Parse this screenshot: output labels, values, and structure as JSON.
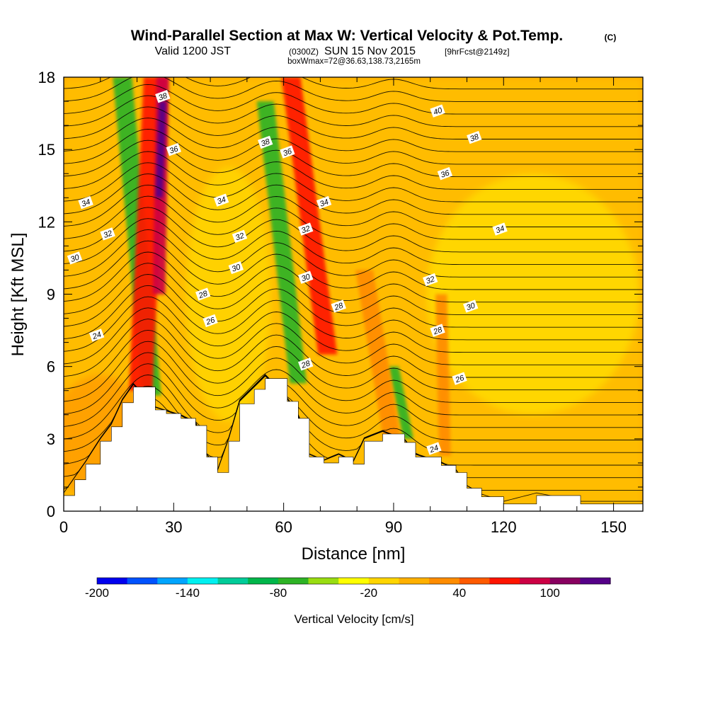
{
  "title_main": "Wind-Parallel Section at Max W: Vertical Velocity & Pot.Temp.",
  "title_mark": "(C)",
  "subtitle_prefix": "Valid 1200 JST",
  "subtitle_utc": "(0300Z)",
  "subtitle_date": "SUN 15 Nov 2015",
  "subtitle_fcst": "[9hrFcst@2149z]",
  "subtitle2": "boxWmax=72@36.63,138.73,2165m",
  "colors": {
    "background": "#ffa500",
    "terrain": "#ffffff",
    "contour": "#000000",
    "colorbar": [
      "#0000ee",
      "#0052ff",
      "#00a5ff",
      "#00f0f0",
      "#00cc99",
      "#00b64a",
      "#2db325",
      "#99dd11",
      "#ffff00",
      "#ffd500",
      "#ffb000",
      "#ff8c00",
      "#ff5a00",
      "#ff1400",
      "#cc0044",
      "#880060",
      "#550088"
    ]
  },
  "chart_data": {
    "type": "heatmap",
    "xlabel": "Distance [nm]",
    "ylabel": "Height [Kft MSL]",
    "xlim": [
      0,
      158
    ],
    "ylim": [
      0,
      18
    ],
    "x_ticks": [
      0,
      30,
      60,
      90,
      120,
      150
    ],
    "y_ticks": [
      0,
      3,
      6,
      9,
      12,
      15,
      18
    ],
    "colorbar": {
      "label": "Vertical Velocity [cm/s]",
      "ticks": [
        "-200",
        "-140",
        "-80",
        "-20",
        "40",
        "100"
      ],
      "bins": 17
    },
    "terrain_profile": [
      {
        "x": 0,
        "h": 0.65
      },
      {
        "x": 3,
        "h": 1.3
      },
      {
        "x": 6,
        "h": 1.95
      },
      {
        "x": 10,
        "h": 2.9
      },
      {
        "x": 13,
        "h": 3.5
      },
      {
        "x": 16,
        "h": 4.5
      },
      {
        "x": 19,
        "h": 5.15
      },
      {
        "x": 25,
        "h": 4.2
      },
      {
        "x": 28,
        "h": 4.05
      },
      {
        "x": 32,
        "h": 3.85
      },
      {
        "x": 36,
        "h": 3.55
      },
      {
        "x": 39,
        "h": 2.25
      },
      {
        "x": 42,
        "h": 1.6
      },
      {
        "x": 45,
        "h": 2.9
      },
      {
        "x": 48,
        "h": 4.45
      },
      {
        "x": 52,
        "h": 5.05
      },
      {
        "x": 55,
        "h": 5.5
      },
      {
        "x": 61,
        "h": 4.55
      },
      {
        "x": 64,
        "h": 3.85
      },
      {
        "x": 67,
        "h": 2.25
      },
      {
        "x": 71,
        "h": 2.0
      },
      {
        "x": 75,
        "h": 2.25
      },
      {
        "x": 79,
        "h": 1.95
      },
      {
        "x": 82,
        "h": 2.9
      },
      {
        "x": 87,
        "h": 3.2
      },
      {
        "x": 93,
        "h": 2.85
      },
      {
        "x": 96,
        "h": 2.25
      },
      {
        "x": 103,
        "h": 1.9
      },
      {
        "x": 107,
        "h": 1.6
      },
      {
        "x": 110,
        "h": 0.95
      },
      {
        "x": 114,
        "h": 0.6
      },
      {
        "x": 120,
        "h": 0.3
      },
      {
        "x": 129,
        "h": 0.65
      },
      {
        "x": 141,
        "h": 0.3
      },
      {
        "x": 158,
        "h": 0.3
      }
    ],
    "updraft_bands": [
      {
        "color": "#ff1400",
        "top_x": 25,
        "top_y": 18,
        "base_x": 21,
        "base_y": 5.0,
        "half_width_nm": 3.2
      },
      {
        "color": "#cc0044",
        "top_x": 27,
        "top_y": 18,
        "base_x": 26,
        "base_y": 9.0,
        "half_width_nm": 1.7
      },
      {
        "color": "#550088",
        "top_x": 27,
        "top_y": 17,
        "base_x": 26,
        "base_y": 13.0,
        "half_width_nm": 1.0
      },
      {
        "color": "#ff1400",
        "top_x": 62,
        "top_y": 18,
        "base_x": 72,
        "base_y": 6.5,
        "half_width_nm": 2.6
      },
      {
        "color": "#ff8c00",
        "top_x": 82,
        "top_y": 10,
        "base_x": 90,
        "base_y": 2.6,
        "half_width_nm": 2.4
      },
      {
        "color": "#ff8c00",
        "top_x": 103,
        "top_y": 9,
        "base_x": 104,
        "base_y": 2.3,
        "half_width_nm": 1.6
      }
    ],
    "downdraft_bands": [
      {
        "color": "#2db325",
        "top_x": 16,
        "top_y": 18,
        "base_x": 24,
        "base_y": 4.8,
        "half_width_nm": 2.6
      },
      {
        "color": "#2db325",
        "top_x": 55,
        "top_y": 17,
        "base_x": 64,
        "base_y": 5.3,
        "half_width_nm": 2.3
      },
      {
        "color": "#2db325",
        "top_x": 90,
        "top_y": 6,
        "base_x": 94,
        "base_y": 3.0,
        "half_width_nm": 1.4
      }
    ],
    "contour_labels": [
      {
        "x": 27,
        "y": 17.2,
        "text": "38"
      },
      {
        "x": 30,
        "y": 15.0,
        "text": "36"
      },
      {
        "x": 6,
        "y": 12.8,
        "text": "34"
      },
      {
        "x": 12,
        "y": 11.5,
        "text": "32"
      },
      {
        "x": 3,
        "y": 10.5,
        "text": "30"
      },
      {
        "x": 9,
        "y": 7.3,
        "text": "24"
      },
      {
        "x": 43,
        "y": 12.9,
        "text": "34"
      },
      {
        "x": 48,
        "y": 11.4,
        "text": "32"
      },
      {
        "x": 47,
        "y": 10.1,
        "text": "30"
      },
      {
        "x": 38,
        "y": 9.0,
        "text": "28"
      },
      {
        "x": 40,
        "y": 7.9,
        "text": "26"
      },
      {
        "x": 55,
        "y": 15.3,
        "text": "38"
      },
      {
        "x": 61,
        "y": 14.9,
        "text": "36"
      },
      {
        "x": 71,
        "y": 12.8,
        "text": "34"
      },
      {
        "x": 66,
        "y": 11.7,
        "text": "32"
      },
      {
        "x": 66,
        "y": 9.7,
        "text": "30"
      },
      {
        "x": 75,
        "y": 8.5,
        "text": "28"
      },
      {
        "x": 66,
        "y": 6.1,
        "text": "28"
      },
      {
        "x": 102,
        "y": 16.6,
        "text": "40"
      },
      {
        "x": 112,
        "y": 15.5,
        "text": "38"
      },
      {
        "x": 104,
        "y": 14.0,
        "text": "36"
      },
      {
        "x": 119,
        "y": 11.7,
        "text": "34"
      },
      {
        "x": 100,
        "y": 9.6,
        "text": "32"
      },
      {
        "x": 111,
        "y": 8.5,
        "text": "30"
      },
      {
        "x": 102,
        "y": 7.5,
        "text": "28"
      },
      {
        "x": 108,
        "y": 5.5,
        "text": "26"
      },
      {
        "x": 101,
        "y": 2.6,
        "text": "24"
      }
    ]
  }
}
